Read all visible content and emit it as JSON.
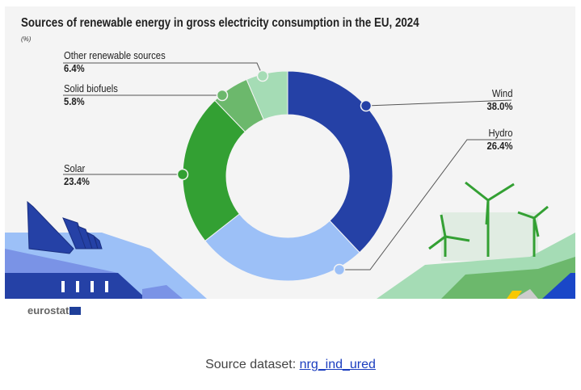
{
  "chart_data": {
    "type": "pie",
    "title": "Sources of renewable energy in gross electricity consumption in the EU, 2024",
    "unit": "(%)",
    "donut": true,
    "slices": [
      {
        "name": "Wind",
        "value": 38.0,
        "label": "38.0%",
        "color": "#2541a6"
      },
      {
        "name": "Hydro",
        "value": 26.4,
        "label": "26.4%",
        "color": "#9cc0f7"
      },
      {
        "name": "Solar",
        "value": 23.4,
        "label": "23.4%",
        "color": "#33a033"
      },
      {
        "name": "Solid biofuels",
        "value": 5.8,
        "label": "5.8%",
        "color": "#6cb86c"
      },
      {
        "name": "Other renewable sources",
        "value": 6.4,
        "label": "6.4%",
        "color": "#a5dcb5"
      }
    ]
  },
  "footer": {
    "logo": "eurostat",
    "source_prefix": "Source dataset: ",
    "source_link": "nrg_ind_ured"
  }
}
